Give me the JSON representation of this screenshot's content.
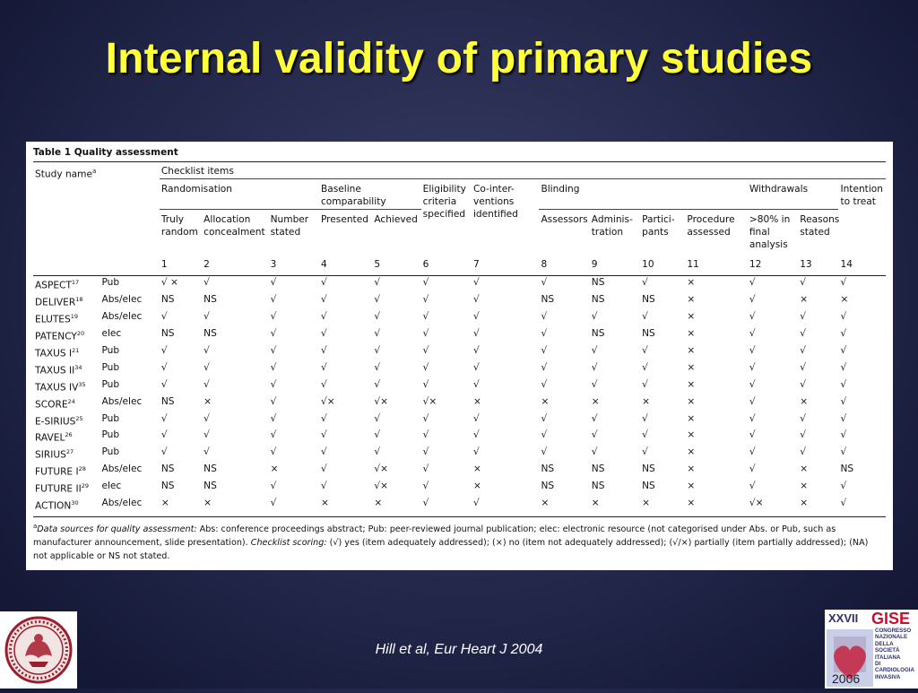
{
  "slide": {
    "title": "Internal validity of primary studies",
    "citation": "Hill et al, Eur Heart J 2004"
  },
  "table": {
    "caption": "Table 1  Quality assessment",
    "study_name_header": "Study name",
    "study_name_sup": "a",
    "checklist_header": "Checklist items",
    "groups": {
      "randomisation": "Randomisation",
      "baseline": "Baseline comparability",
      "eligibility": "Eligibility criteria specified",
      "cointerventions": "Co-inter-ventions identified",
      "blinding": "Blinding",
      "withdrawals": "Withdrawals",
      "itt": "Intention to treat"
    },
    "subheaders": {
      "c1": "Truly random",
      "c2": "Allocation concealment",
      "c3": "Number stated",
      "c4": "Presented",
      "c5": "Achieved",
      "c8": "Assessors",
      "c9": "Adminis-tration",
      "c10": "Partici-pants",
      "c11": "Procedure assessed",
      "c12": ">80% in final analysis",
      "c13": "Reasons stated"
    },
    "column_numbers": [
      "1",
      "2",
      "3",
      "4",
      "5",
      "6",
      "7",
      "8",
      "9",
      "10",
      "11",
      "12",
      "13",
      "14"
    ],
    "rows": [
      {
        "name": "ASPECT",
        "ref": "17",
        "source": "Pub",
        "cells": [
          "√ ×",
          "√",
          "√",
          "√",
          "√",
          "√",
          "√",
          "√",
          "NS",
          "√",
          "×",
          "√",
          "√",
          "√"
        ]
      },
      {
        "name": "DELIVER",
        "ref": "18",
        "source": "Abs/elec",
        "cells": [
          "NS",
          "NS",
          "√",
          "√",
          "√",
          "√",
          "√",
          "NS",
          "NS",
          "NS",
          "×",
          "√",
          "×",
          "×"
        ]
      },
      {
        "name": "ELUTES",
        "ref": "19",
        "source": "Abs/elec",
        "cells": [
          "√",
          "√",
          "√",
          "√",
          "√",
          "√",
          "√",
          "√",
          "√",
          "√",
          "×",
          "√",
          "√",
          "√"
        ]
      },
      {
        "name": "PATENCY",
        "ref": "20",
        "source": "elec",
        "cells": [
          "NS",
          "NS",
          "√",
          "√",
          "√",
          "√",
          "√",
          "√",
          "NS",
          "NS",
          "×",
          "√",
          "√",
          "√"
        ]
      },
      {
        "name": "TAXUS I",
        "ref": "21",
        "source": "Pub",
        "cells": [
          "√",
          "√",
          "√",
          "√",
          "√",
          "√",
          "√",
          "√",
          "√",
          "√",
          "×",
          "√",
          "√",
          "√"
        ]
      },
      {
        "name": "TAXUS II",
        "ref": "34",
        "source": "Pub",
        "cells": [
          "√",
          "√",
          "√",
          "√",
          "√",
          "√",
          "√",
          "√",
          "√",
          "√",
          "×",
          "√",
          "√",
          "√"
        ]
      },
      {
        "name": "TAXUS IV",
        "ref": "35",
        "source": "Pub",
        "cells": [
          "√",
          "√",
          "√",
          "√",
          "√",
          "√",
          "√",
          "√",
          "√",
          "√",
          "×",
          "√",
          "√",
          "√"
        ]
      },
      {
        "name": "SCORE",
        "ref": "24",
        "source": "Abs/elec",
        "cells": [
          "NS",
          "×",
          "√",
          "√×",
          "√×",
          "√×",
          "×",
          "×",
          "×",
          "×",
          "×",
          "√",
          "×",
          "√"
        ]
      },
      {
        "name": "E-SIRIUS",
        "ref": "25",
        "source": "Pub",
        "cells": [
          "√",
          "√",
          "√",
          "√",
          "√",
          "√",
          "√",
          "√",
          "√",
          "√",
          "×",
          "√",
          "√",
          "√"
        ]
      },
      {
        "name": "RAVEL",
        "ref": "26",
        "source": "Pub",
        "cells": [
          "√",
          "√",
          "√",
          "√",
          "√",
          "√",
          "√",
          "√",
          "√",
          "√",
          "×",
          "√",
          "√",
          "√"
        ]
      },
      {
        "name": "SIRIUS",
        "ref": "27",
        "source": "Pub",
        "cells": [
          "√",
          "√",
          "√",
          "√",
          "√",
          "√",
          "√",
          "√",
          "√",
          "√",
          "×",
          "√",
          "√",
          "√"
        ]
      },
      {
        "name": "FUTURE I",
        "ref": "28",
        "source": "Abs/elec",
        "cells": [
          "NS",
          "NS",
          "×",
          "√",
          "√×",
          "√",
          "×",
          "NS",
          "NS",
          "NS",
          "×",
          "√",
          "×",
          "NS"
        ]
      },
      {
        "name": "FUTURE II",
        "ref": "29",
        "source": "elec",
        "cells": [
          "NS",
          "NS",
          "√",
          "√",
          "√×",
          "√",
          "×",
          "NS",
          "NS",
          "NS",
          "×",
          "√",
          "×",
          "√"
        ]
      },
      {
        "name": "ACTION",
        "ref": "30",
        "source": "Abs/elec",
        "cells": [
          "×",
          "×",
          "√",
          "×",
          "×",
          "√",
          "√",
          "×",
          "×",
          "×",
          "×",
          "√×",
          "×",
          "√"
        ]
      }
    ],
    "footnote": {
      "sup": "a",
      "sources_label": "Data sources for quality assessment:",
      "sources_text": " Abs: conference proceedings abstract; Pub: peer-reviewed journal publication; elec: electronic resource (not categorised under Abs. or Pub, such as manufacturer announcement, slide presentation). ",
      "scoring_label": "Checklist scoring:",
      "scoring_text": " (√) yes (item adequately addressed); (×) no (item not adequately addressed); (√/×) partially (item partially addressed); (NA) not applicable or NS not stated."
    }
  },
  "logos": {
    "left_icon": "university-seal",
    "right_roman": "XXVII",
    "right_brand": "GISE",
    "right_lines": [
      "CONGRESSO",
      "NAZIONALE",
      "DELLA SOCIETÀ",
      "ITALIANA",
      "DI CARDIOLOGIA",
      "INVASIVA"
    ],
    "right_year": "2006"
  },
  "colors": {
    "title": "#ffff3a",
    "background": "#23274a",
    "gise_red": "#c8102e"
  }
}
